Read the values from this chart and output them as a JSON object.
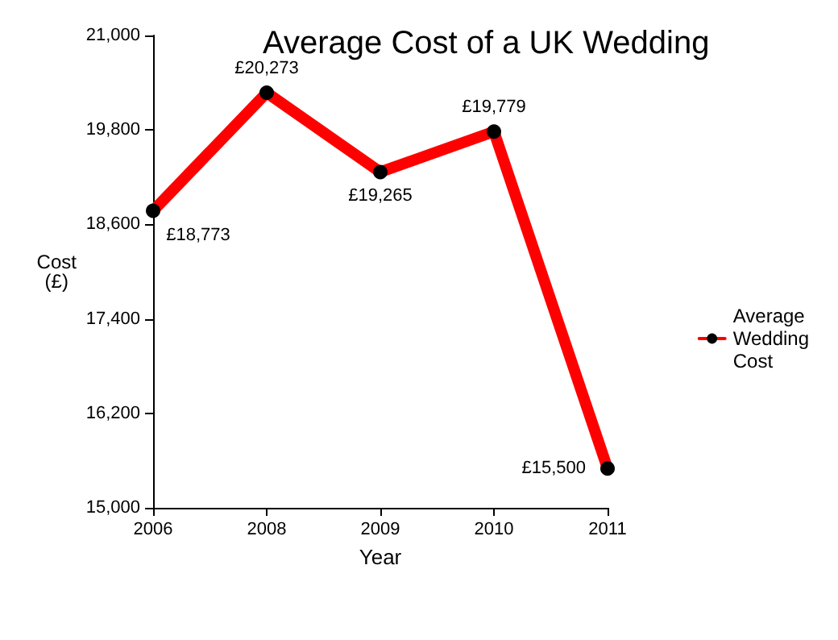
{
  "chart_data": {
    "type": "line",
    "title": "Average Cost of a UK Wedding",
    "xlabel": "Year",
    "ylabel": "Cost\n(£)",
    "categories": [
      "2006",
      "2008",
      "2009",
      "2010",
      "2011"
    ],
    "series": [
      {
        "name": "Average Wedding Cost",
        "color": "#ff0000",
        "values": [
          18773,
          20273,
          19265,
          19779,
          15500
        ],
        "value_labels": [
          "£18,773",
          "£20,273",
          "£19,265",
          "£19,779",
          "£15,500"
        ]
      }
    ],
    "ylim": [
      15000,
      21000
    ],
    "yticks": [
      {
        "value": 15000,
        "label": "15,000"
      },
      {
        "value": 16200,
        "label": "16,200"
      },
      {
        "value": 17400,
        "label": "17,400"
      },
      {
        "value": 18600,
        "label": "18,600"
      },
      {
        "value": 19800,
        "label": "19,800"
      },
      {
        "value": 21000,
        "label": "21,000"
      }
    ],
    "grid": false,
    "legend": "right",
    "marker": "circle",
    "line_style": "solid"
  }
}
